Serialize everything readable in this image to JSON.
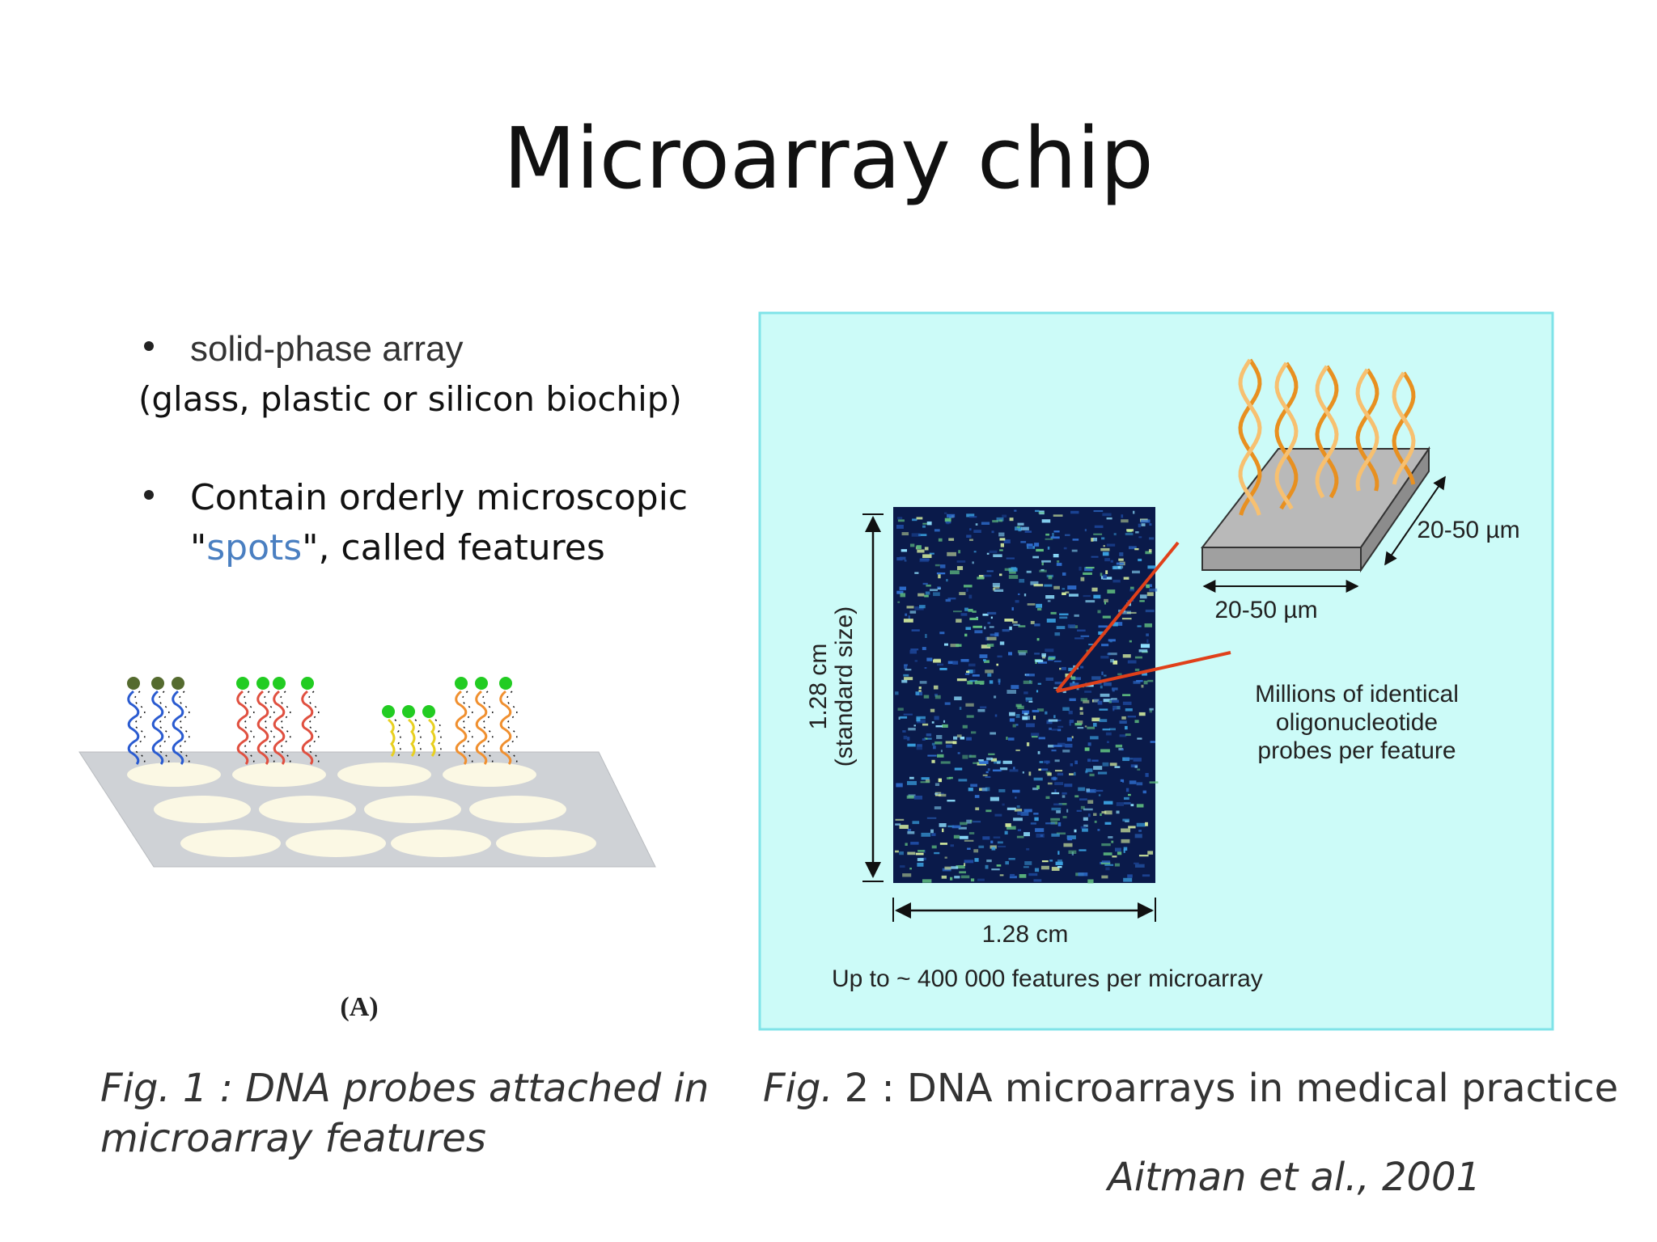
{
  "slide": {
    "title": "Microarray chip",
    "bullets": [
      {
        "text": "solid-phase array",
        "note": "(glass, plastic or silicon biochip)"
      },
      {
        "lines": [
          "Contain orderly microscopic",
          "\"",
          "spots",
          "\", called features"
        ]
      }
    ],
    "figure1": {
      "panel_label": "(A)",
      "caption": [
        "Fig. 1 : DNA probes attached in",
        "microarray features"
      ]
    },
    "figure2": {
      "height_label": [
        "1.28 cm",
        "(standard size)"
      ],
      "width_label": "1.28 cm",
      "slab_width_label": "20-50 µm",
      "slab_depth_label": "20-50 µm",
      "probe_note": [
        "Millions of identical",
        "oligonucleotide",
        "probes per feature"
      ],
      "footer": "Up to ~ 400 000 features per microarray",
      "caption_prefix": "Fig.",
      "caption": "2 : DNA microarrays in medical practice"
    },
    "citation": "Aitman et al., 2001"
  }
}
